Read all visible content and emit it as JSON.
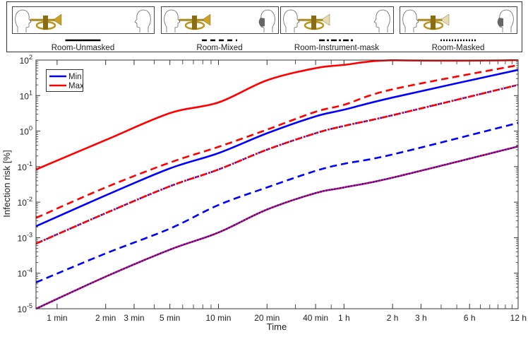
{
  "scenario_legend": {
    "items": [
      {
        "label": "Room-Unmasked",
        "line_style": "solid",
        "listener_mask": false,
        "instrument_mask": false
      },
      {
        "label": "Room-Mixed",
        "line_style": "dashed",
        "listener_mask": true,
        "instrument_mask": false
      },
      {
        "label": "Room-Instrument-mask",
        "line_style": "dash-dot",
        "listener_mask": false,
        "instrument_mask": true
      },
      {
        "label": "Room-Masked",
        "line_style": "dotted",
        "listener_mask": true,
        "instrument_mask": true
      }
    ]
  },
  "chart_data": {
    "type": "line",
    "xlabel": "Time",
    "ylabel": "Infection risk [%]",
    "x_unit": "min",
    "xscale": "log",
    "yscale": "log",
    "xlim": [
      0.74,
      720
    ],
    "ylim": [
      1e-05,
      100
    ],
    "grid": false,
    "legend_position": "top-left",
    "legend": [
      {
        "name": "Min",
        "color": "#0000ff"
      },
      {
        "name": "Max",
        "color": "#ff0000"
      }
    ],
    "x_ticks": [
      {
        "value": 1,
        "label": "1 min"
      },
      {
        "value": 2,
        "label": "2 min"
      },
      {
        "value": 3,
        "label": "3 min"
      },
      {
        "value": 5,
        "label": "5 min"
      },
      {
        "value": 10,
        "label": "10 min"
      },
      {
        "value": 20,
        "label": "20 min"
      },
      {
        "value": 40,
        "label": "40 min"
      },
      {
        "value": 60,
        "label": "1 h"
      },
      {
        "value": 120,
        "label": "2 h"
      },
      {
        "value": 180,
        "label": "3 h"
      },
      {
        "value": 360,
        "label": "6 h"
      },
      {
        "value": 720,
        "label": "12 h"
      }
    ],
    "y_ticks": [
      {
        "value": 100,
        "base": "10",
        "exp": "2"
      },
      {
        "value": 10,
        "base": "10",
        "exp": "1"
      },
      {
        "value": 1,
        "base": "10",
        "exp": "0"
      },
      {
        "value": 0.1,
        "base": "10",
        "exp": "-1"
      },
      {
        "value": 0.01,
        "base": "10",
        "exp": "-2"
      },
      {
        "value": 0.001,
        "base": "10",
        "exp": "-3"
      },
      {
        "value": 0.0001,
        "base": "10",
        "exp": "-4"
      },
      {
        "value": 1e-05,
        "base": "10",
        "exp": "-5"
      }
    ],
    "x": [
      0.74,
      2,
      5,
      10,
      20,
      40,
      60,
      120,
      720
    ],
    "series": [
      {
        "name": "Max",
        "scenario": "Room-Unmasked",
        "color": "#ff0000",
        "style": "solid",
        "values": [
          0.083,
          0.56,
          3.2,
          6.4,
          27,
          59,
          73,
          99,
          100
        ]
      },
      {
        "name": "Max",
        "scenario": "Room-Mixed",
        "color": "#ff0000",
        "style": "dashed",
        "values": [
          0.0036,
          0.026,
          0.13,
          0.36,
          1.1,
          3.5,
          5.5,
          15,
          72
        ]
      },
      {
        "name": "Min",
        "scenario": "Room-Unmasked",
        "color": "#0000ff",
        "style": "solid",
        "values": [
          0.0021,
          0.0155,
          0.089,
          0.24,
          0.87,
          2.6,
          4.0,
          8.8,
          53
        ]
      },
      {
        "name": "Min",
        "scenario": "Room-Instrument-mask",
        "color": "#0000ff",
        "style": "dash-dot",
        "values": [
          0.00068,
          0.0049,
          0.028,
          0.083,
          0.3,
          0.87,
          1.4,
          2.8,
          20
        ]
      },
      {
        "name": "Max",
        "scenario": "Room-Instrument-mask",
        "color": "#ff0000",
        "style": "dash-dot",
        "values": [
          0.00068,
          0.0049,
          0.028,
          0.083,
          0.3,
          0.87,
          1.4,
          2.8,
          20
        ]
      },
      {
        "name": "Min",
        "scenario": "Room-Mixed",
        "color": "#0000ff",
        "style": "dashed",
        "values": [
          5.5e-05,
          0.00036,
          0.0018,
          0.0083,
          0.026,
          0.076,
          0.12,
          0.22,
          1.7
        ]
      },
      {
        "name": "Min",
        "scenario": "Room-Masked",
        "color": "#0000ff",
        "style": "dotted",
        "values": [
          1e-05,
          8e-05,
          0.00046,
          0.0014,
          0.0062,
          0.018,
          0.026,
          0.049,
          0.37
        ]
      },
      {
        "name": "Max",
        "scenario": "Room-Masked",
        "color": "#ff0000",
        "style": "dotted",
        "values": [
          1e-05,
          8e-05,
          0.00046,
          0.0014,
          0.0062,
          0.018,
          0.026,
          0.049,
          0.37
        ]
      }
    ]
  }
}
